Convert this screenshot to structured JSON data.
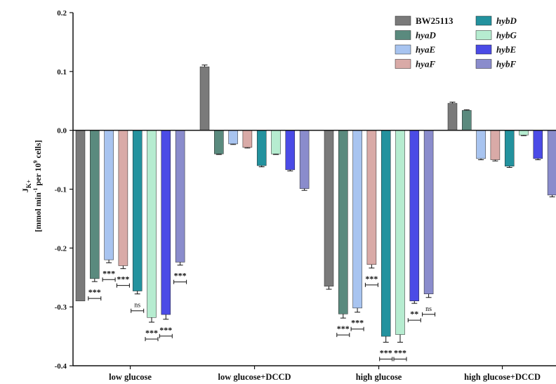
{
  "chart_data": {
    "type": "bar",
    "ylabel_main": "J",
    "ylabel_sub": "K+",
    "ylabel_units": "[mmol min",
    "ylabel_units_exp": "-1",
    "ylabel_units_mid": " per 10",
    "ylabel_units_exp2": "9",
    "ylabel_units_end": " cells]",
    "ylim": [
      -0.4,
      0.2
    ],
    "yticks": [
      "0.2",
      "0.1",
      "0.0",
      "-0.1",
      "-0.2",
      "-0.3",
      "-0.4"
    ],
    "ytick_values": [
      0.2,
      0.1,
      0.0,
      -0.1,
      -0.2,
      -0.3,
      -0.4
    ],
    "categories": [
      "low glucose",
      "low glucose+DCCD",
      "high glucose",
      "high glucose+DCCD"
    ],
    "legend_position": "top-right",
    "series": [
      {
        "name": "BW25113",
        "italic": false,
        "color": "#7a7a7a",
        "values": [
          -0.29,
          0.108,
          -0.265,
          0.046
        ],
        "errors": [
          0.0,
          0.003,
          0.005,
          0.002
        ]
      },
      {
        "name": "hyaD",
        "italic": true,
        "color": "#5a8a7e",
        "values": [
          -0.252,
          -0.04,
          -0.312,
          0.034
        ],
        "errors": [
          0.005,
          0.001,
          0.007,
          0.001
        ]
      },
      {
        "name": "hyaE",
        "italic": true,
        "color": "#a8c4f0",
        "values": [
          -0.22,
          -0.023,
          -0.302,
          -0.048
        ],
        "errors": [
          0.005,
          0.001,
          0.007,
          0.002
        ]
      },
      {
        "name": "hyaF",
        "italic": true,
        "color": "#d9aaa7",
        "values": [
          -0.23,
          -0.029,
          -0.228,
          -0.05
        ],
        "errors": [
          0.005,
          0.001,
          0.006,
          0.002
        ]
      },
      {
        "name": "hybD",
        "italic": true,
        "color": "#23929e",
        "values": [
          -0.273,
          -0.06,
          -0.35,
          -0.061
        ],
        "errors": [
          0.005,
          0.002,
          0.01,
          0.002
        ]
      },
      {
        "name": "hybG",
        "italic": true,
        "color": "#b6ecd0",
        "values": [
          -0.318,
          -0.04,
          -0.347,
          -0.008
        ],
        "errors": [
          0.008,
          0.001,
          0.013,
          0.001
        ]
      },
      {
        "name": "hybE",
        "italic": true,
        "color": "#4b4be6",
        "values": [
          -0.313,
          -0.067,
          -0.29,
          -0.048
        ],
        "errors": [
          0.008,
          0.002,
          0.004,
          0.002
        ]
      },
      {
        "name": "hybF",
        "italic": true,
        "color": "#8a8ccc",
        "values": [
          -0.224,
          -0.099,
          -0.278,
          -0.11
        ],
        "errors": [
          0.005,
          0.003,
          0.006,
          0.003
        ]
      }
    ],
    "annotations": [
      {
        "group": 0,
        "series": 1,
        "text": "***"
      },
      {
        "group": 0,
        "series": 2,
        "text": "***"
      },
      {
        "group": 0,
        "series": 3,
        "text": "***"
      },
      {
        "group": 0,
        "series": 4,
        "text": "ns"
      },
      {
        "group": 0,
        "series": 5,
        "text": "***"
      },
      {
        "group": 0,
        "series": 6,
        "text": "***"
      },
      {
        "group": 0,
        "series": 7,
        "text": "***"
      },
      {
        "group": 2,
        "series": 1,
        "text": "***"
      },
      {
        "group": 2,
        "series": 2,
        "text": "***"
      },
      {
        "group": 2,
        "series": 3,
        "text": "***"
      },
      {
        "group": 2,
        "series": 4,
        "text": "***"
      },
      {
        "group": 2,
        "series": 5,
        "text": "***"
      },
      {
        "group": 2,
        "series": 6,
        "text": "**"
      },
      {
        "group": 2,
        "series": 7,
        "text": "ns"
      }
    ]
  }
}
